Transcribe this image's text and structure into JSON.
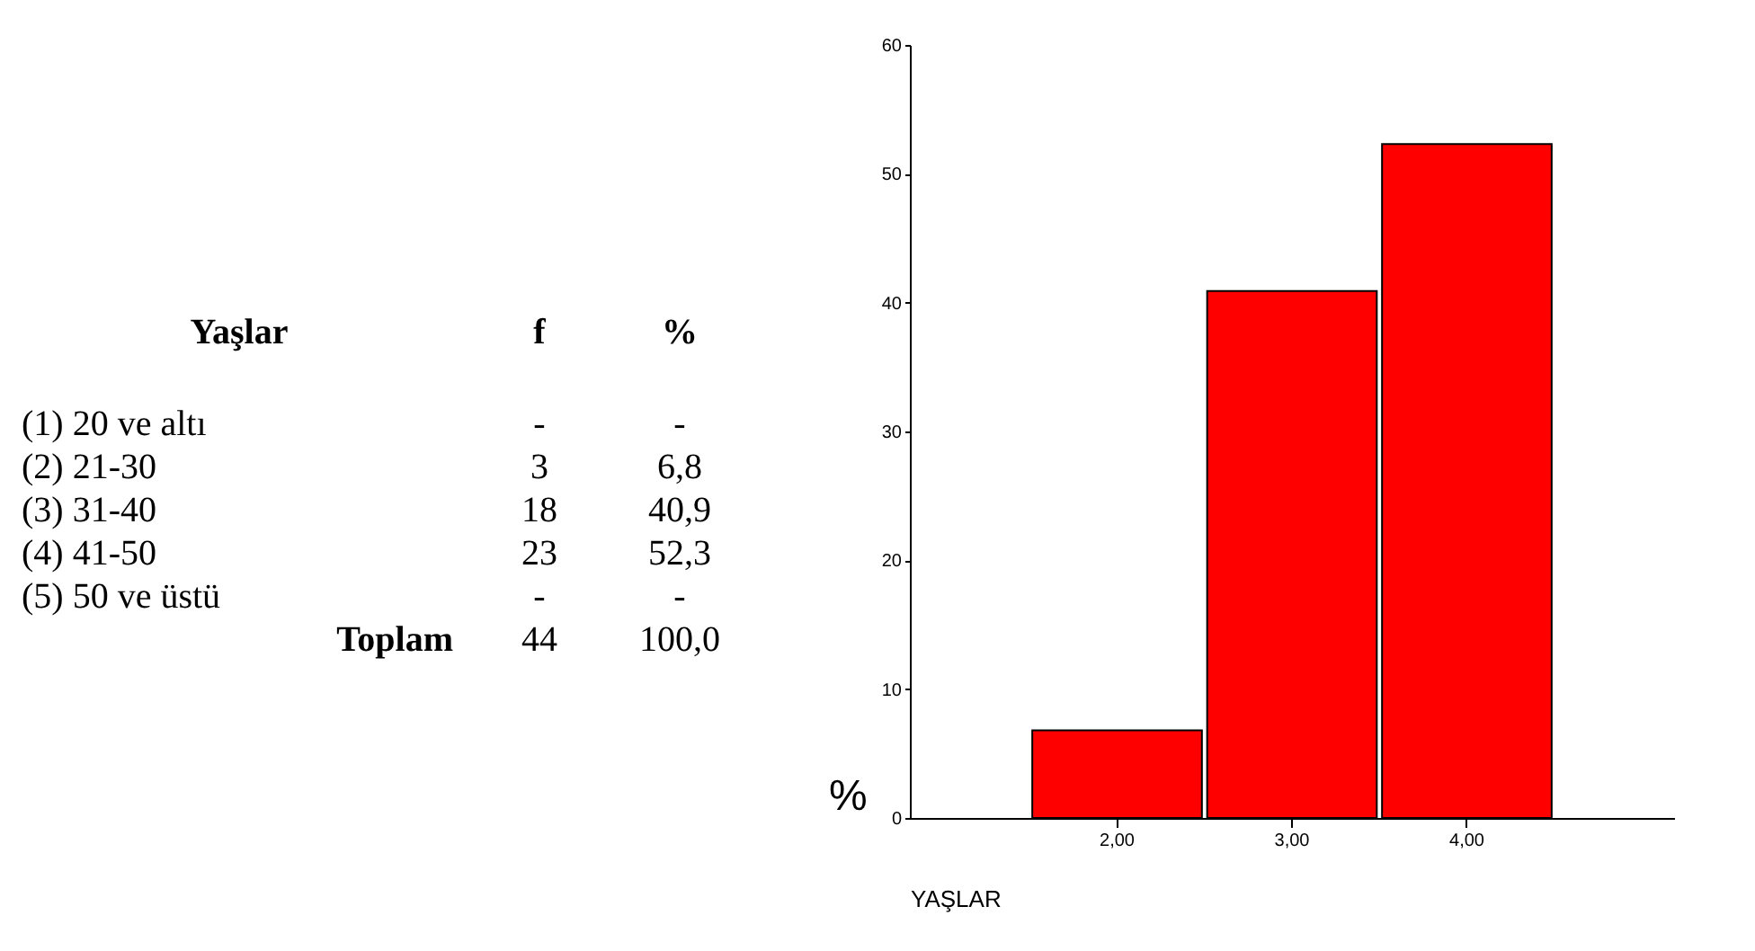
{
  "chart_data": [
    {
      "type": "other",
      "annotations": [
        "Yaşlar",
        "f",
        "%",
        "(1) 20 ve altı",
        "-",
        "-",
        "(2) 21-30",
        "3",
        "6,8",
        "(3) 31-40",
        "18",
        "40,9",
        "(4) 41-50",
        "23",
        "52,3",
        "(5) 50 ve üstü",
        "-",
        "-",
        "Toplam",
        "44",
        "100,0"
      ]
    },
    {
      "type": "bar",
      "categories": [
        "2,00",
        "3,00",
        "4,00"
      ],
      "values": [
        6.8,
        40.9,
        52.3
      ],
      "color": "#ff0000",
      "xlabel": "YAŞLAR",
      "ylabel": "%",
      "ylim": [
        0,
        60
      ],
      "yticks": [
        0,
        10,
        20,
        30,
        40,
        50,
        60
      ],
      "grid": false
    }
  ]
}
